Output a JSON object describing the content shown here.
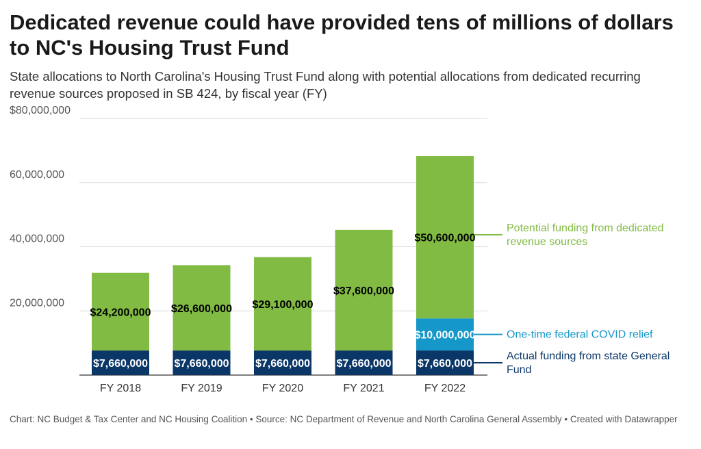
{
  "title": "Dedicated revenue could have provided tens of millions of dollars to NC's Housing Trust Fund",
  "subtitle": "State allocations to North Carolina's Housing Trust Fund along with potential allocations from dedicated recurring revenue sources proposed in SB 424, by fiscal year (FY)",
  "footer": "Chart: NC Budget & Tax Center and NC Housing Coalition • Source: NC Department of Revenue and North Carolina General Assembly • Created with Datawrapper",
  "chart_data": {
    "type": "bar",
    "stacked": true,
    "categories": [
      "FY 2018",
      "FY 2019",
      "FY 2020",
      "FY 2021",
      "FY 2022"
    ],
    "series": [
      {
        "name": "Actual funding from state General Fund",
        "values": [
          7660000,
          7660000,
          7660000,
          7660000,
          7660000
        ],
        "labels": [
          "$7,660,000",
          "$7,660,000",
          "$7,660,000",
          "$7,660,000",
          "$7,660,000"
        ],
        "color": "#0b3768",
        "label_color": "#ffffff"
      },
      {
        "name": "One-time federal COVID relief",
        "values": [
          0,
          0,
          0,
          0,
          10000000
        ],
        "labels": [
          "",
          "",
          "",
          "",
          "$10,000,000"
        ],
        "color": "#1597c9",
        "label_color": "#ffffff"
      },
      {
        "name": "Potential funding from dedicated revenue sources",
        "values": [
          24200000,
          26600000,
          29100000,
          37600000,
          50600000
        ],
        "labels": [
          "$24,200,000",
          "$26,600,000",
          "$29,100,000",
          "$37,600,000",
          "$50,600,000"
        ],
        "color": "#82bb43",
        "label_color": "#000000"
      }
    ],
    "legend": [
      {
        "text": "Potential funding from dedicated revenue sources",
        "color": "#82bb43"
      },
      {
        "text": "One-time federal COVID relief",
        "color": "#1597c9"
      },
      {
        "text": "Actual funding from state General Fund",
        "color": "#0b3768"
      }
    ],
    "legend_placement": "right",
    "y_ticks": [
      0,
      20000000,
      40000000,
      60000000,
      80000000
    ],
    "y_tick_labels": [
      "",
      "20,000,000",
      "40,000,000",
      "60,000,000",
      "$80,000,000"
    ],
    "ylim": [
      0,
      80000000
    ],
    "grid": true
  }
}
